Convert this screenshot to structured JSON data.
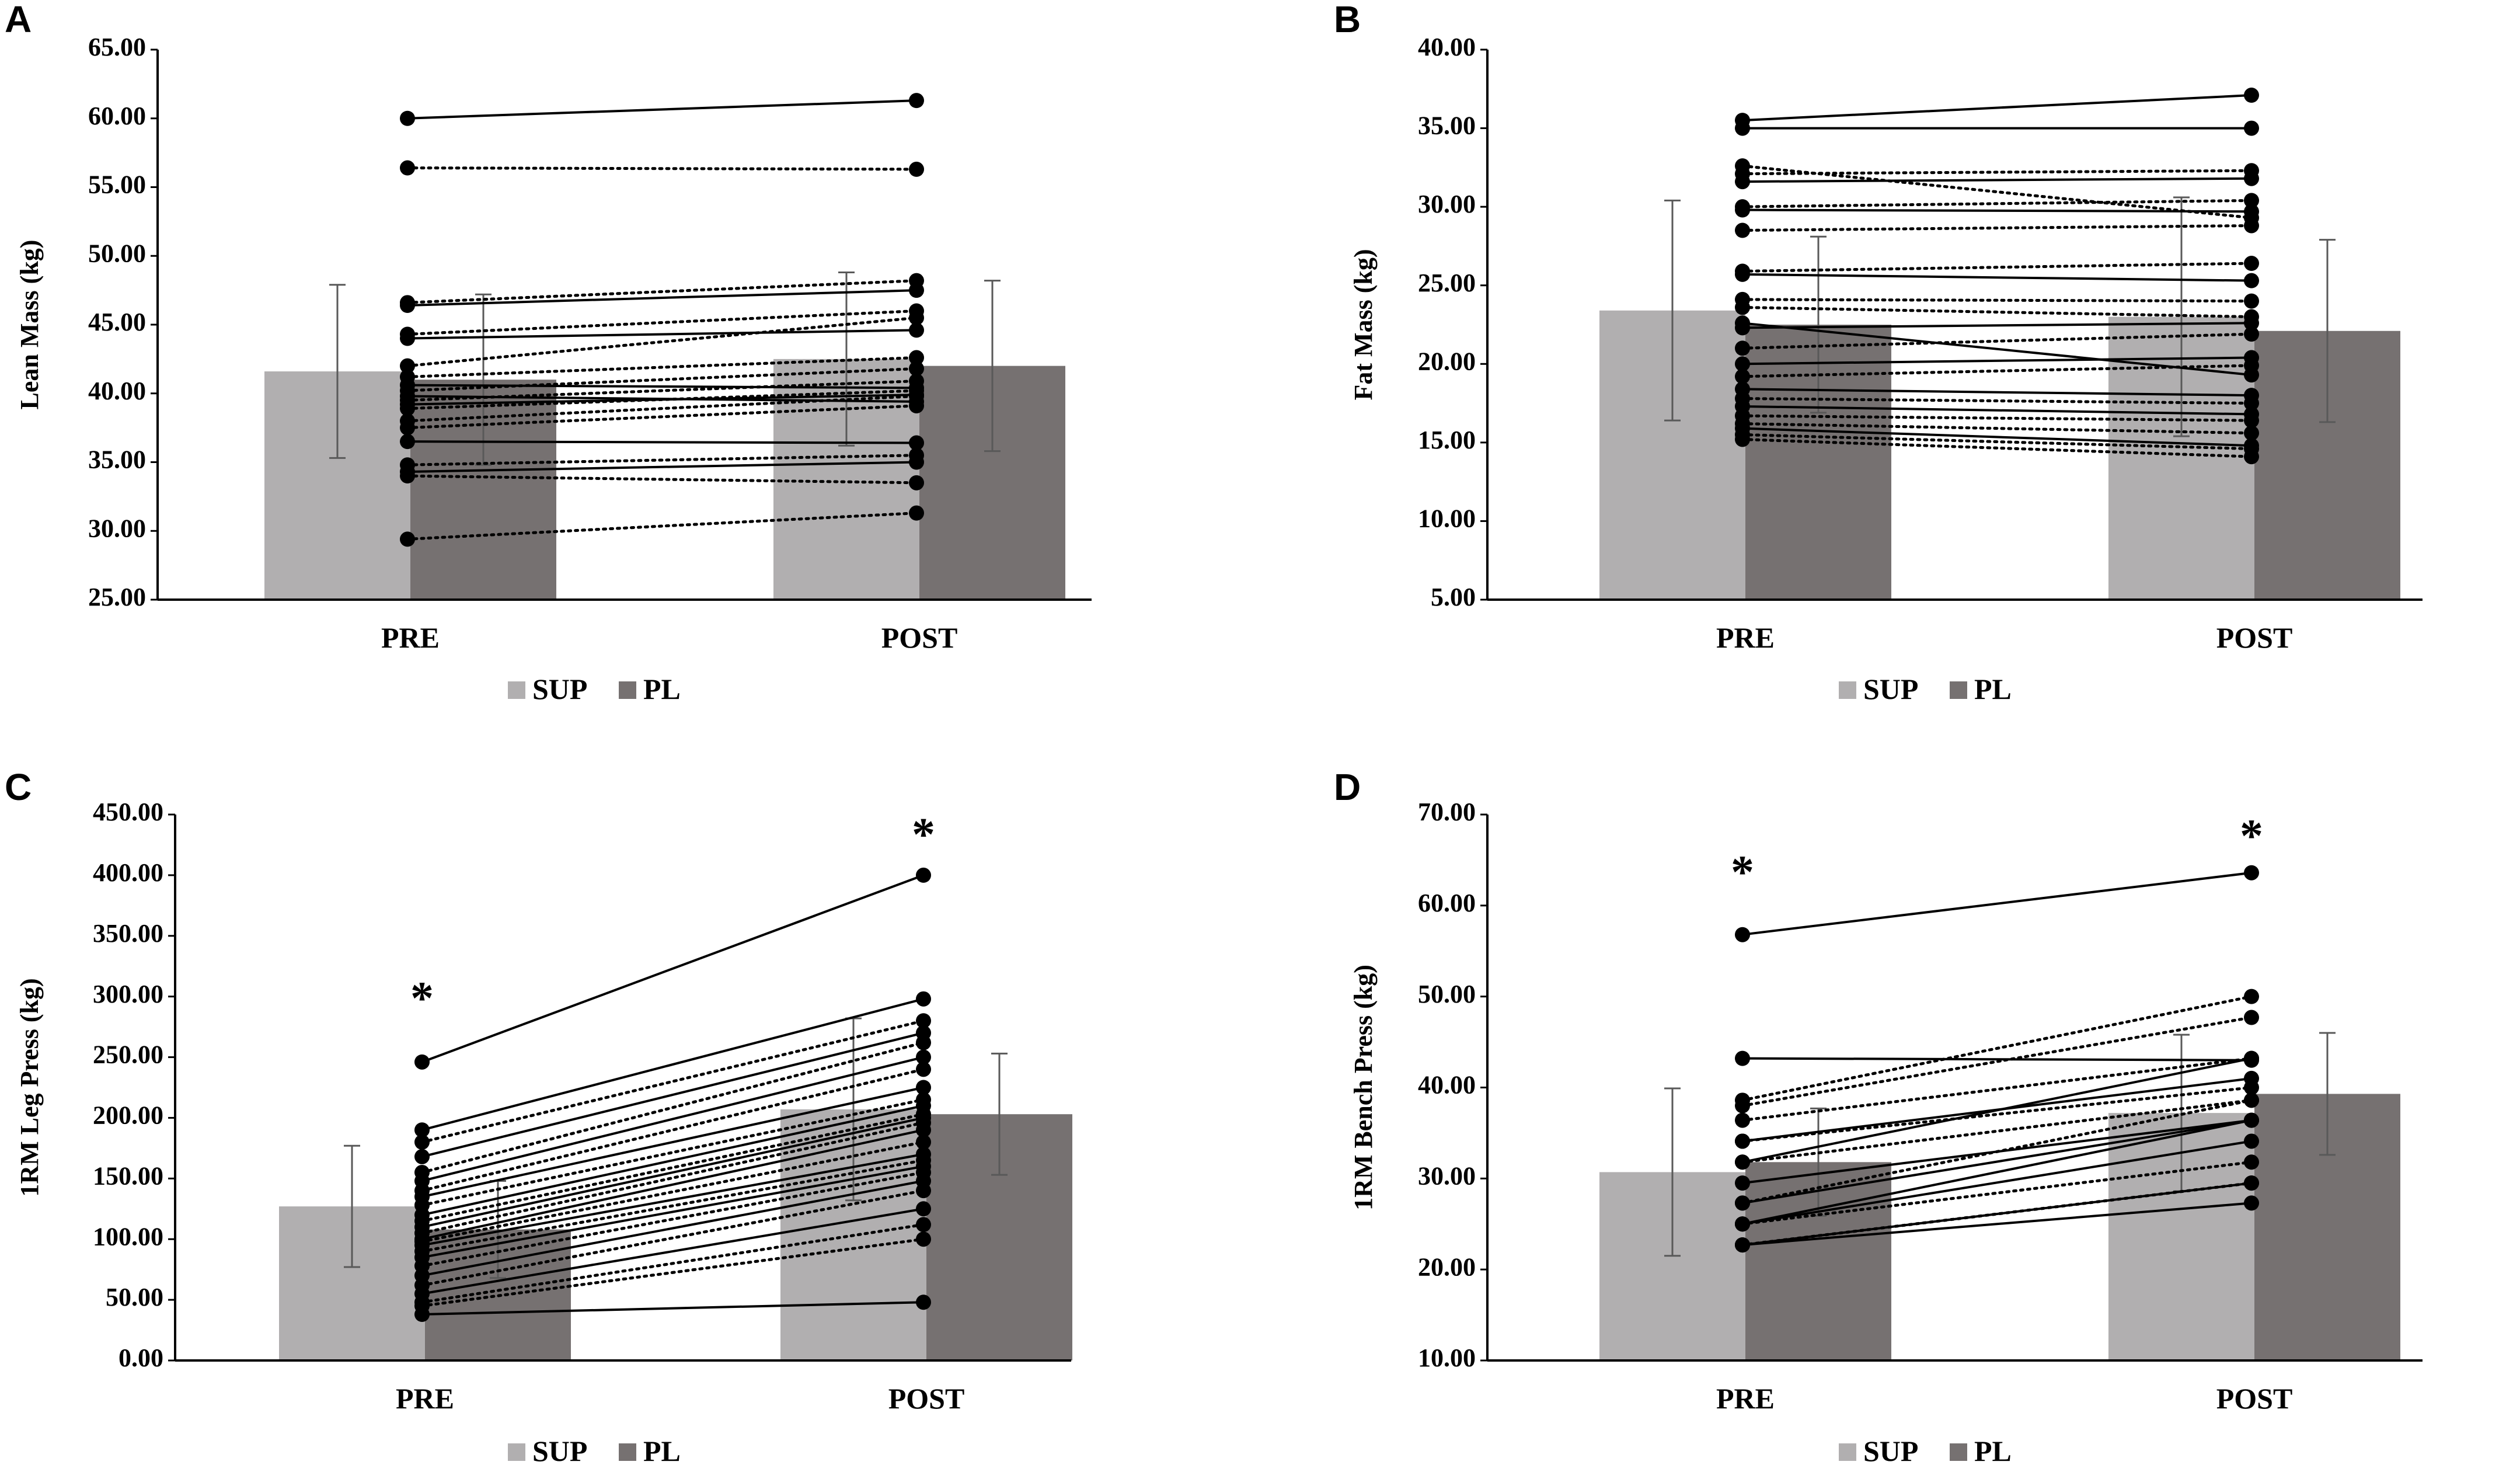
{
  "colors": {
    "sup": "#b1afb0",
    "pl": "#767171",
    "marker": "#000000",
    "axis": "#000000",
    "errorbar": "#595959"
  },
  "legend": {
    "sup": "SUP",
    "pl": "PL"
  },
  "chart_data": [
    {
      "panel": "A",
      "type": "bar",
      "ylabel": "Lean Mass (kg)",
      "categories": [
        "PRE",
        "POST"
      ],
      "ylim": [
        25,
        65
      ],
      "yticks": [
        25,
        30,
        35,
        40,
        45,
        50,
        55,
        60,
        65
      ],
      "tick_labels": [
        "25.00",
        "30.00",
        "35.00",
        "40.00",
        "45.00",
        "50.00",
        "55.00",
        "60.00",
        "65.00"
      ],
      "series": [
        {
          "name": "SUP",
          "values": [
            41.6,
            42.5
          ],
          "error": [
            6.3,
            6.3
          ]
        },
        {
          "name": "PL",
          "values": [
            41.0,
            42.0
          ],
          "error": [
            6.2,
            6.2
          ]
        }
      ],
      "individual": [
        {
          "pre": 60.0,
          "post": 61.3,
          "style": "solid"
        },
        {
          "pre": 56.4,
          "post": 56.3,
          "style": "dotted"
        },
        {
          "pre": 46.6,
          "post": 48.2,
          "style": "dotted"
        },
        {
          "pre": 46.4,
          "post": 47.5,
          "style": "solid"
        },
        {
          "pre": 44.3,
          "post": 46.0,
          "style": "dotted"
        },
        {
          "pre": 44.0,
          "post": 44.6,
          "style": "solid"
        },
        {
          "pre": 42.0,
          "post": 45.5,
          "style": "dotted"
        },
        {
          "pre": 41.2,
          "post": 42.6,
          "style": "dotted"
        },
        {
          "pre": 40.6,
          "post": 40.4,
          "style": "solid"
        },
        {
          "pre": 40.2,
          "post": 41.8,
          "style": "dotted"
        },
        {
          "pre": 39.8,
          "post": 39.4,
          "style": "solid"
        },
        {
          "pre": 39.5,
          "post": 40.9,
          "style": "dotted"
        },
        {
          "pre": 39.2,
          "post": 39.9,
          "style": "solid"
        },
        {
          "pre": 38.9,
          "post": 40.2,
          "style": "dotted"
        },
        {
          "pre": 38.0,
          "post": 39.8,
          "style": "dotted"
        },
        {
          "pre": 37.5,
          "post": 39.1,
          "style": "dotted"
        },
        {
          "pre": 36.5,
          "post": 36.4,
          "style": "solid"
        },
        {
          "pre": 34.8,
          "post": 35.5,
          "style": "dotted"
        },
        {
          "pre": 34.3,
          "post": 35.0,
          "style": "solid"
        },
        {
          "pre": 34.0,
          "post": 33.5,
          "style": "dotted"
        },
        {
          "pre": 29.4,
          "post": 31.3,
          "style": "dotted"
        }
      ]
    },
    {
      "panel": "B",
      "type": "bar",
      "ylabel": "Fat Mass (kg)",
      "categories": [
        "PRE",
        "POST"
      ],
      "ylim": [
        5,
        40
      ],
      "yticks": [
        5,
        10,
        15,
        20,
        25,
        30,
        35,
        40
      ],
      "tick_labels": [
        "5.00",
        "10.00",
        "15.00",
        "20.00",
        "25.00",
        "30.00",
        "35.00",
        "40.00"
      ],
      "series": [
        {
          "name": "SUP",
          "values": [
            23.4,
            23.0
          ],
          "error": [
            7.0,
            7.6
          ]
        },
        {
          "name": "PL",
          "values": [
            22.5,
            22.1
          ],
          "error": [
            5.6,
            5.8
          ]
        }
      ],
      "individual": [
        {
          "pre": 35.5,
          "post": 37.1,
          "style": "solid"
        },
        {
          "pre": 35.0,
          "post": 35.0,
          "style": "solid"
        },
        {
          "pre": 32.6,
          "post": 29.3,
          "style": "dotted"
        },
        {
          "pre": 32.1,
          "post": 32.3,
          "style": "dotted"
        },
        {
          "pre": 31.6,
          "post": 31.8,
          "style": "solid"
        },
        {
          "pre": 30.0,
          "post": 30.4,
          "style": "dotted"
        },
        {
          "pre": 29.8,
          "post": 29.7,
          "style": "solid"
        },
        {
          "pre": 28.5,
          "post": 28.8,
          "style": "dotted"
        },
        {
          "pre": 25.9,
          "post": 26.4,
          "style": "dotted"
        },
        {
          "pre": 25.7,
          "post": 25.3,
          "style": "solid"
        },
        {
          "pre": 24.1,
          "post": 24.0,
          "style": "dotted"
        },
        {
          "pre": 23.6,
          "post": 23.0,
          "style": "dotted"
        },
        {
          "pre": 22.6,
          "post": 19.3,
          "style": "solid"
        },
        {
          "pre": 22.3,
          "post": 22.6,
          "style": "solid"
        },
        {
          "pre": 21.0,
          "post": 21.9,
          "style": "dotted"
        },
        {
          "pre": 20.0,
          "post": 20.4,
          "style": "solid"
        },
        {
          "pre": 19.2,
          "post": 19.9,
          "style": "dotted"
        },
        {
          "pre": 18.4,
          "post": 18.0,
          "style": "solid"
        },
        {
          "pre": 17.8,
          "post": 17.5,
          "style": "dotted"
        },
        {
          "pre": 17.3,
          "post": 16.8,
          "style": "solid"
        },
        {
          "pre": 16.7,
          "post": 16.4,
          "style": "dotted"
        },
        {
          "pre": 16.2,
          "post": 15.6,
          "style": "dotted"
        },
        {
          "pre": 15.9,
          "post": 14.8,
          "style": "solid"
        },
        {
          "pre": 15.5,
          "post": 14.6,
          "style": "dotted"
        },
        {
          "pre": 15.2,
          "post": 14.1,
          "style": "dotted"
        }
      ]
    },
    {
      "panel": "C",
      "type": "bar",
      "ylabel": "1RM Leg Press (kg)",
      "categories": [
        "PRE",
        "POST"
      ],
      "ylim": [
        0,
        450
      ],
      "yticks": [
        0,
        50,
        100,
        150,
        200,
        250,
        300,
        350,
        400,
        450
      ],
      "tick_labels": [
        "0.00",
        "50.00",
        "100.00",
        "150.00",
        "200.00",
        "250.00",
        "300.00",
        "350.00",
        "400.00",
        "450.00"
      ],
      "series": [
        {
          "name": "SUP",
          "values": [
            127,
            207
          ],
          "error": [
            50,
            75
          ]
        },
        {
          "name": "PL",
          "values": [
            108,
            203
          ],
          "error": [
            40,
            50
          ]
        }
      ],
      "annotations": [
        {
          "category": "PRE",
          "text": "*",
          "value": 305
        },
        {
          "category": "POST",
          "text": "*",
          "value": 440
        }
      ],
      "individual": [
        {
          "pre": 246,
          "post": 400,
          "style": "solid"
        },
        {
          "pre": 190,
          "post": 298,
          "style": "solid"
        },
        {
          "pre": 180,
          "post": 280,
          "style": "dotted"
        },
        {
          "pre": 168,
          "post": 270,
          "style": "solid"
        },
        {
          "pre": 155,
          "post": 262,
          "style": "dotted"
        },
        {
          "pre": 148,
          "post": 250,
          "style": "solid"
        },
        {
          "pre": 140,
          "post": 240,
          "style": "dotted"
        },
        {
          "pre": 135,
          "post": 225,
          "style": "solid"
        },
        {
          "pre": 128,
          "post": 215,
          "style": "dotted"
        },
        {
          "pre": 120,
          "post": 210,
          "style": "solid"
        },
        {
          "pre": 115,
          "post": 203,
          "style": "dotted"
        },
        {
          "pre": 110,
          "post": 200,
          "style": "solid"
        },
        {
          "pre": 105,
          "post": 196,
          "style": "dotted"
        },
        {
          "pre": 100,
          "post": 190,
          "style": "solid"
        },
        {
          "pre": 98,
          "post": 180,
          "style": "dotted"
        },
        {
          "pre": 95,
          "post": 170,
          "style": "solid"
        },
        {
          "pre": 90,
          "post": 165,
          "style": "dotted"
        },
        {
          "pre": 85,
          "post": 160,
          "style": "solid"
        },
        {
          "pre": 78,
          "post": 155,
          "style": "dotted"
        },
        {
          "pre": 70,
          "post": 148,
          "style": "solid"
        },
        {
          "pre": 62,
          "post": 140,
          "style": "dotted"
        },
        {
          "pre": 55,
          "post": 125,
          "style": "solid"
        },
        {
          "pre": 48,
          "post": 112,
          "style": "dotted"
        },
        {
          "pre": 45,
          "post": 100,
          "style": "dotted"
        },
        {
          "pre": 38,
          "post": 48,
          "style": "solid"
        }
      ]
    },
    {
      "panel": "D",
      "type": "bar",
      "ylabel": "1RM Bench Press (kg)",
      "categories": [
        "PRE",
        "POST"
      ],
      "ylim": [
        10,
        70
      ],
      "yticks": [
        10,
        20,
        30,
        40,
        50,
        60,
        70
      ],
      "tick_labels": [
        "10.00",
        "20.00",
        "30.00",
        "40.00",
        "50.00",
        "60.00",
        "70.00"
      ],
      "series": [
        {
          "name": "SUP",
          "values": [
            30.7,
            37.2
          ],
          "error": [
            9.2,
            8.6
          ]
        },
        {
          "name": "PL",
          "values": [
            31.8,
            39.3
          ],
          "error": [
            5.9,
            6.7
          ]
        }
      ],
      "annotations": [
        {
          "category": "PRE",
          "text": "*",
          "value": 64.5
        },
        {
          "category": "POST",
          "text": "*",
          "value": 68.5
        }
      ],
      "individual": [
        {
          "pre": 56.8,
          "post": 63.6,
          "style": "solid"
        },
        {
          "pre": 43.2,
          "post": 43.0,
          "style": "solid"
        },
        {
          "pre": 38.6,
          "post": 50.0,
          "style": "dotted"
        },
        {
          "pre": 38.0,
          "post": 47.7,
          "style": "dotted"
        },
        {
          "pre": 36.4,
          "post": 43.2,
          "style": "dotted"
        },
        {
          "pre": 34.1,
          "post": 41.0,
          "style": "solid"
        },
        {
          "pre": 34.1,
          "post": 40.0,
          "style": "dotted"
        },
        {
          "pre": 31.8,
          "post": 43.2,
          "style": "solid"
        },
        {
          "pre": 31.8,
          "post": 38.6,
          "style": "dotted"
        },
        {
          "pre": 29.5,
          "post": 36.4,
          "style": "solid"
        },
        {
          "pre": 27.3,
          "post": 38.6,
          "style": "dotted"
        },
        {
          "pre": 27.3,
          "post": 36.4,
          "style": "solid"
        },
        {
          "pre": 25.0,
          "post": 36.4,
          "style": "solid"
        },
        {
          "pre": 25.0,
          "post": 34.1,
          "style": "solid"
        },
        {
          "pre": 25.0,
          "post": 31.8,
          "style": "dotted"
        },
        {
          "pre": 22.7,
          "post": 29.5,
          "style": "solid"
        },
        {
          "pre": 22.7,
          "post": 27.3,
          "style": "solid"
        },
        {
          "pre": 22.7,
          "post": 29.5,
          "style": "dotted"
        }
      ]
    }
  ]
}
